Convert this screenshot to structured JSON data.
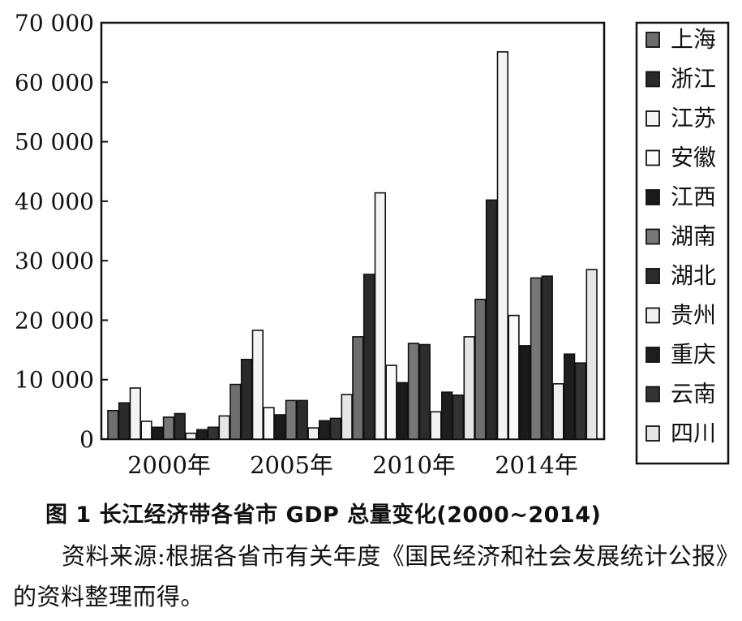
{
  "chart_data": {
    "type": "bar",
    "categories": [
      "2000年",
      "2005年",
      "2010年",
      "2014年"
    ],
    "yticks": [
      "0",
      "10 000",
      "20 000",
      "30 000",
      "40 000",
      "50 000",
      "60 000",
      "70 000"
    ],
    "ylim": [
      0,
      70000
    ],
    "legend_position": "right",
    "series": [
      {
        "name": "上海",
        "color": "#6e6e6e",
        "values": [
          4800,
          9200,
          17200,
          23500
        ]
      },
      {
        "name": "浙江",
        "color": "#2a2a2a",
        "values": [
          6100,
          13400,
          27700,
          40200
        ]
      },
      {
        "name": "江苏",
        "color": "#f4f4f4",
        "values": [
          8600,
          18300,
          41400,
          65100
        ]
      },
      {
        "name": "安徽",
        "color": "#fafafa",
        "values": [
          3000,
          5300,
          12400,
          20800
        ]
      },
      {
        "name": "江西",
        "color": "#1a1a1a",
        "values": [
          2000,
          4100,
          9500,
          15700
        ]
      },
      {
        "name": "湖南",
        "color": "#777777",
        "values": [
          3700,
          6500,
          16100,
          27100
        ]
      },
      {
        "name": "湖北",
        "color": "#2c2c2c",
        "values": [
          4300,
          6500,
          15900,
          27400
        ]
      },
      {
        "name": "贵州",
        "color": "#f0f0f0",
        "values": [
          1000,
          1900,
          4600,
          9300
        ]
      },
      {
        "name": "重庆",
        "color": "#1e1e1e",
        "values": [
          1600,
          3100,
          7900,
          14300
        ]
      },
      {
        "name": "云南",
        "color": "#333333",
        "values": [
          2000,
          3500,
          7400,
          12800
        ]
      },
      {
        "name": "四川",
        "color": "#e6e6e6",
        "values": [
          3900,
          7500,
          17200,
          28500
        ]
      }
    ]
  },
  "caption": "图 1  长江经济带各省市 GDP 总量变化(2000~2014)",
  "source_note": "资料来源:根据各省市有关年度《国民经济和社会发展统计公报》的资料整理而得。"
}
